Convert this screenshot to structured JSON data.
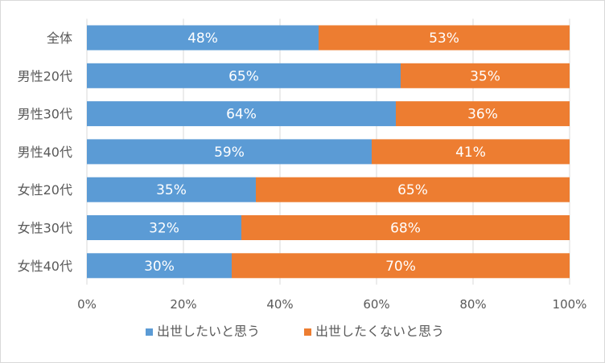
{
  "chart_data": {
    "type": "bar",
    "orientation": "horizontal",
    "stacked": true,
    "categories": [
      "全体",
      "男性20代",
      "男性30代",
      "男性40代",
      "女性20代",
      "女性30代",
      "女性40代"
    ],
    "series": [
      {
        "name": "出世したいと思う",
        "values": [
          48,
          65,
          64,
          59,
          35,
          32,
          30
        ],
        "labels": [
          "48%",
          "65%",
          "64%",
          "59%",
          "35%",
          "32%",
          "30%"
        ]
      },
      {
        "name": "出世したくないと思う",
        "values": [
          53,
          35,
          36,
          41,
          65,
          68,
          70
        ],
        "labels": [
          "53%",
          "35%",
          "36%",
          "41%",
          "65%",
          "68%",
          "70%"
        ]
      }
    ],
    "colors": [
      "#5b9bd5",
      "#ed7d31"
    ],
    "xlim": [
      0,
      100
    ],
    "x_ticks": [
      0,
      20,
      40,
      60,
      80,
      100
    ],
    "x_tick_labels": [
      "0%",
      "20%",
      "40%",
      "60%",
      "80%",
      "100%"
    ],
    "grid": true,
    "legend": "bottom",
    "title": "",
    "xlabel": "",
    "ylabel": ""
  }
}
